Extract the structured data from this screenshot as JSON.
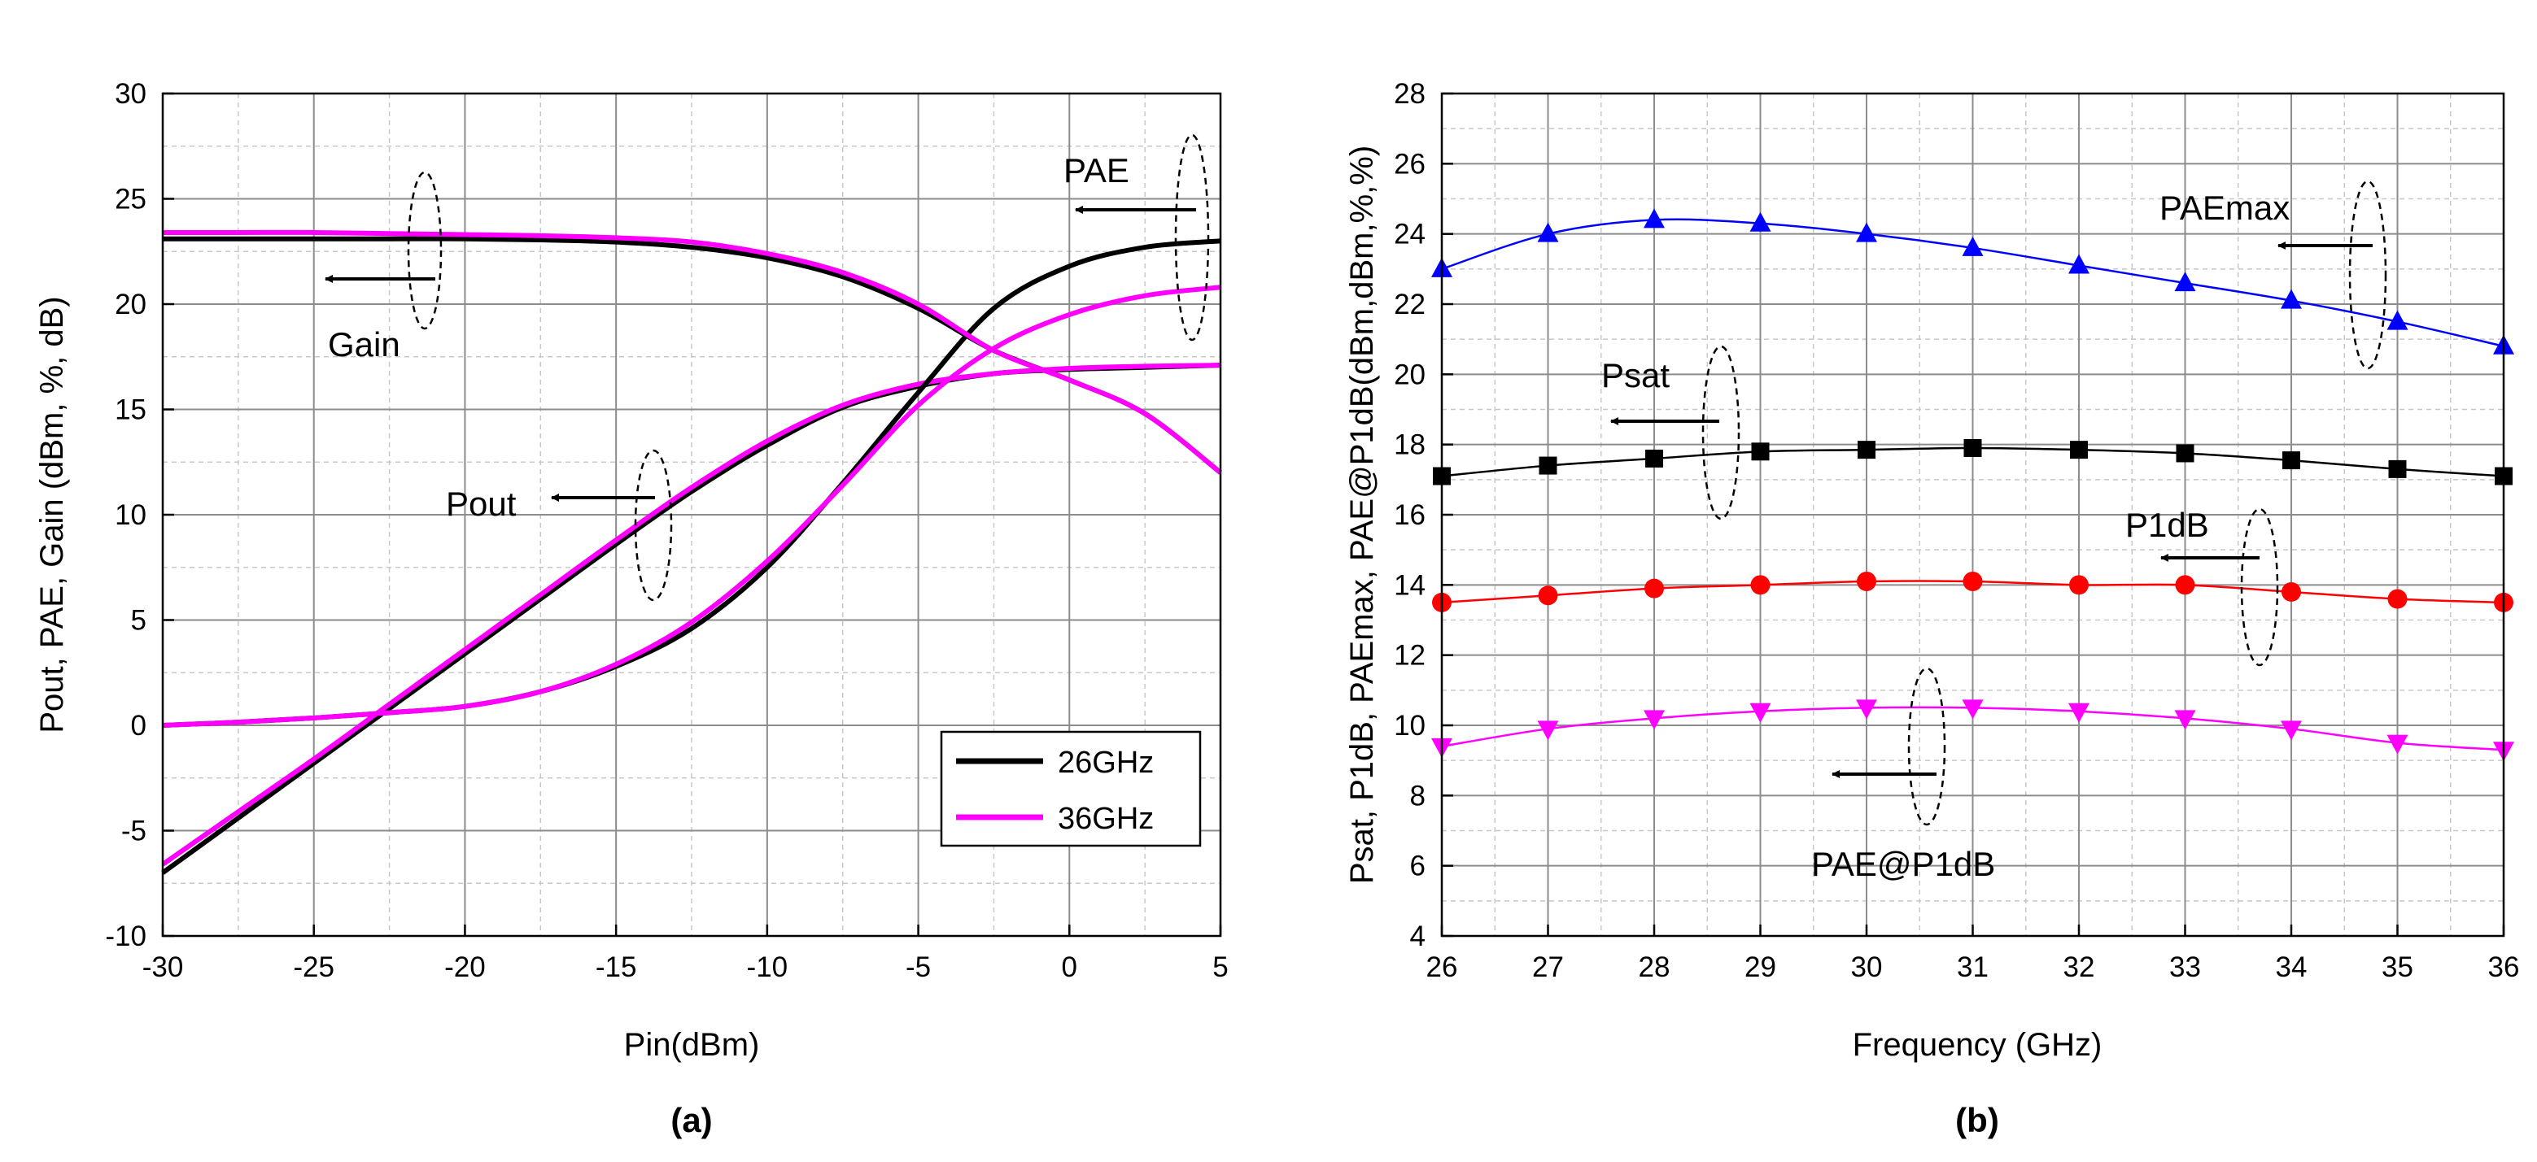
{
  "chart_data": [
    {
      "type": "line",
      "caption": "(a)",
      "xlabel": "Pin(dBm)",
      "ylabel": "Pout, PAE, Gain (dBm, %, dB)",
      "xlim": [
        -30,
        5
      ],
      "ylim": [
        -10,
        30
      ],
      "xticks": [
        -30,
        -25,
        -20,
        -15,
        -10,
        -5,
        0,
        5
      ],
      "yticks": [
        -10,
        -5,
        0,
        5,
        10,
        15,
        20,
        25,
        30
      ],
      "grid": true,
      "legend": {
        "position": "bottom-right",
        "entries": [
          {
            "name": "26GHz",
            "color": "#000000"
          },
          {
            "name": "36GHz",
            "color": "#ff00ff"
          }
        ]
      },
      "x": [
        -30,
        -27.5,
        -25,
        -22.5,
        -20,
        -17.5,
        -15,
        -12.5,
        -10,
        -7.5,
        -5,
        -2.5,
        0,
        2.5,
        5
      ],
      "series": [
        {
          "name": "Pout 26GHz",
          "color": "#000000",
          "values": [
            -7,
            -4.4,
            -1.8,
            0.8,
            3.4,
            6,
            8.6,
            11.1,
            13.3,
            15.1,
            16.1,
            16.7,
            16.9,
            17,
            17.1
          ]
        },
        {
          "name": "Pout 36GHz",
          "color": "#ff00ff",
          "values": [
            -6.6,
            -4.1,
            -1.6,
            1,
            3.6,
            6.2,
            8.8,
            11.3,
            13.5,
            15.2,
            16.2,
            16.7,
            16.95,
            17.05,
            17.1
          ]
        },
        {
          "name": "PAE 26GHz",
          "color": "#000000",
          "values": [
            0,
            0.15,
            0.35,
            0.6,
            0.9,
            1.6,
            2.8,
            4.6,
            7.5,
            11.5,
            15.8,
            19.8,
            21.8,
            22.7,
            23
          ]
        },
        {
          "name": "PAE 36GHz",
          "color": "#ff00ff",
          "values": [
            0,
            0.15,
            0.35,
            0.6,
            0.9,
            1.6,
            2.9,
            4.9,
            7.8,
            11.4,
            15.2,
            17.9,
            19.5,
            20.4,
            20.8
          ]
        },
        {
          "name": "Gain 26GHz",
          "color": "#000000",
          "values": [
            23.1,
            23.1,
            23.1,
            23.1,
            23.1,
            23.05,
            22.95,
            22.7,
            22.2,
            21.3,
            19.8,
            17.8,
            16.4,
            14.8,
            12
          ]
        },
        {
          "name": "Gain 36GHz",
          "color": "#ff00ff",
          "values": [
            23.4,
            23.4,
            23.4,
            23.35,
            23.3,
            23.25,
            23.15,
            22.95,
            22.4,
            21.5,
            20,
            17.8,
            16.4,
            14.8,
            12
          ]
        }
      ],
      "annotations": [
        {
          "text": "Gain",
          "arrow": "left"
        },
        {
          "text": "Pout",
          "arrow": "left"
        },
        {
          "text": "PAE",
          "arrow": "left"
        }
      ]
    },
    {
      "type": "line",
      "caption": "(b)",
      "xlabel": "Frequency (GHz)",
      "ylabel": "Psat, P1dB, PAEmax, PAE@P1dB(dBm,dBm,%,%)",
      "xlim": [
        26,
        36
      ],
      "ylim": [
        4,
        28
      ],
      "xticks": [
        26,
        27,
        28,
        29,
        30,
        31,
        32,
        33,
        34,
        35,
        36
      ],
      "yticks": [
        4,
        6,
        8,
        10,
        12,
        14,
        16,
        18,
        20,
        22,
        24,
        26,
        28
      ],
      "grid": true,
      "x": [
        26,
        27,
        28,
        29,
        30,
        31,
        32,
        33,
        34,
        35,
        36
      ],
      "series": [
        {
          "name": "PAEmax",
          "color": "#0000ff",
          "marker": "triangle-up",
          "values": [
            23,
            24,
            24.4,
            24.3,
            24,
            23.6,
            23.1,
            22.6,
            22.1,
            21.5,
            20.8
          ]
        },
        {
          "name": "Psat",
          "color": "#000000",
          "marker": "square",
          "values": [
            17.1,
            17.4,
            17.6,
            17.8,
            17.85,
            17.9,
            17.85,
            17.75,
            17.55,
            17.3,
            17.1
          ]
        },
        {
          "name": "P1dB",
          "color": "#ff0000",
          "marker": "circle",
          "values": [
            13.5,
            13.7,
            13.9,
            14,
            14.1,
            14.1,
            14,
            14,
            13.8,
            13.6,
            13.5
          ]
        },
        {
          "name": "PAE@P1dB",
          "color": "#ff00ff",
          "marker": "triangle-down",
          "values": [
            9.4,
            9.9,
            10.2,
            10.4,
            10.5,
            10.5,
            10.4,
            10.2,
            9.9,
            9.5,
            9.3
          ]
        }
      ],
      "annotations": [
        {
          "text": "PAEmax",
          "arrow": "left"
        },
        {
          "text": "Psat",
          "arrow": "left"
        },
        {
          "text": "P1dB",
          "arrow": "left"
        },
        {
          "text": "PAE@P1dB",
          "arrow": "left"
        }
      ]
    }
  ]
}
